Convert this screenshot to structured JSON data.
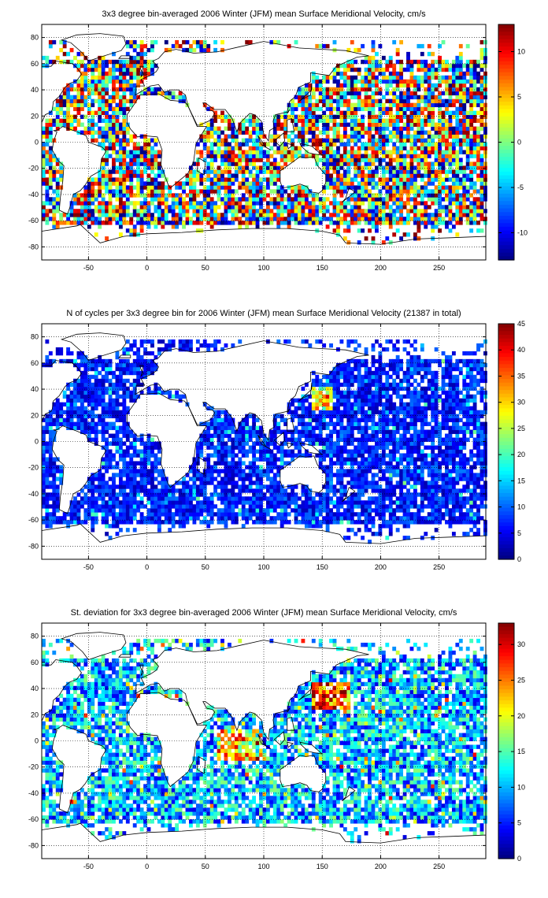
{
  "chart_data": [
    {
      "type": "heatmap",
      "title": "3x3 degree bin-averaged 2006 Winter (JFM) mean Surface Meridional Velocity, cm/s",
      "xlim": [
        -90,
        290
      ],
      "ylim": [
        -90,
        90
      ],
      "xticks": [
        -50,
        0,
        50,
        100,
        150,
        200,
        250
      ],
      "yticks": [
        80,
        60,
        40,
        20,
        0,
        -20,
        -40,
        -60,
        -80
      ],
      "grid": "dotted",
      "colormap": "jet",
      "clim": [
        -13,
        13
      ],
      "colorbar_ticks": [
        10,
        5,
        0,
        -5,
        -10
      ],
      "colorbar_position": "right",
      "bin_size_deg": 3
    },
    {
      "type": "heatmap",
      "title": "N of cycles per 3x3 degree bin for 2006 Winter (JFM) mean Surface Meridional Velocity (21387 in total)",
      "xlim": [
        -90,
        290
      ],
      "ylim": [
        -90,
        90
      ],
      "xticks": [
        -50,
        0,
        50,
        100,
        150,
        200,
        250
      ],
      "yticks": [
        80,
        60,
        40,
        20,
        0,
        -20,
        -40,
        -60,
        -80
      ],
      "grid": "dotted",
      "colormap": "jet",
      "clim": [
        0,
        45
      ],
      "colorbar_ticks": [
        45,
        40,
        35,
        30,
        25,
        20,
        15,
        10,
        5,
        0
      ],
      "colorbar_position": "right",
      "bin_size_deg": 3
    },
    {
      "type": "heatmap",
      "title": "St. deviation for 3x3 degree bin-averaged 2006 Winter (JFM) mean Surface Meridional Velocity, cm/s",
      "xlim": [
        -90,
        290
      ],
      "ylim": [
        -90,
        90
      ],
      "xticks": [
        -50,
        0,
        50,
        100,
        150,
        200,
        250
      ],
      "yticks": [
        80,
        60,
        40,
        20,
        0,
        -20,
        -40,
        -60,
        -80
      ],
      "grid": "dotted",
      "colormap": "jet",
      "clim": [
        0,
        33
      ],
      "colorbar_ticks": [
        30,
        25,
        20,
        15,
        10,
        5,
        0
      ],
      "colorbar_position": "right",
      "bin_size_deg": 3
    }
  ],
  "colors": {
    "axes": "#000000",
    "land": "#ffffff",
    "background": "#ffffff"
  }
}
